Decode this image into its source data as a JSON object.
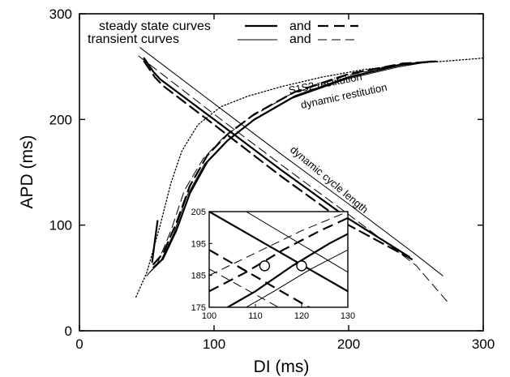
{
  "chart_data": {
    "type": "line",
    "title": "",
    "xlabel": "DI (ms)",
    "ylabel": "APD (ms)",
    "xlim": [
      0,
      300
    ],
    "ylim": [
      0,
      300
    ],
    "x_ticks": [
      "0",
      "100",
      "200",
      "300"
    ],
    "y_ticks": [
      "0",
      "100",
      "200",
      "300"
    ],
    "grid": false,
    "legend": {
      "placement": "top-left",
      "rows": [
        {
          "label": "steady state curves",
          "joiner": "and"
        },
        {
          "label": "transient curves",
          "joiner": "and"
        }
      ]
    },
    "annotations": [
      "S1S2 restitution",
      "dynamic restitution",
      "dynamic cycle length"
    ],
    "series": [
      {
        "style": "s1s2-dotted",
        "points": [
          [
            42,
            32
          ],
          [
            50,
            55
          ],
          [
            60,
            100
          ],
          [
            68,
            140
          ],
          [
            76,
            170
          ],
          [
            88,
            195
          ],
          [
            105,
            212
          ],
          [
            125,
            222
          ],
          [
            150,
            231
          ],
          [
            180,
            240
          ],
          [
            210,
            247
          ],
          [
            250,
            253
          ],
          [
            300,
            258
          ]
        ]
      },
      {
        "style": "steady-solid",
        "points": [
          [
            55,
            60
          ],
          [
            62,
            68
          ],
          [
            72,
            95
          ],
          [
            82,
            130
          ],
          [
            95,
            160
          ],
          [
            110,
            180
          ],
          [
            130,
            200
          ],
          [
            160,
            222
          ],
          [
            200,
            240
          ],
          [
            240,
            252
          ],
          [
            262,
            255
          ]
        ]
      },
      {
        "style": "steady-dashed",
        "points": [
          [
            55,
            63
          ],
          [
            62,
            73
          ],
          [
            72,
            102
          ],
          [
            82,
            137
          ],
          [
            95,
            166
          ],
          [
            110,
            186
          ],
          [
            130,
            205
          ],
          [
            160,
            226
          ],
          [
            200,
            243
          ],
          [
            240,
            253
          ],
          [
            265,
            255
          ]
        ]
      },
      {
        "style": "transient-solid",
        "points": [
          [
            52,
            55
          ],
          [
            60,
            65
          ],
          [
            70,
            92
          ],
          [
            80,
            128
          ],
          [
            93,
            158
          ],
          [
            108,
            178
          ],
          [
            128,
            198
          ],
          [
            158,
            220
          ],
          [
            198,
            238
          ],
          [
            238,
            250
          ],
          [
            262,
            255
          ]
        ]
      },
      {
        "style": "transient-dashed",
        "points": [
          [
            50,
            52
          ],
          [
            58,
            64
          ],
          [
            68,
            95
          ],
          [
            78,
            133
          ],
          [
            92,
            163
          ],
          [
            107,
            183
          ],
          [
            127,
            202
          ],
          [
            157,
            224
          ],
          [
            197,
            241
          ],
          [
            237,
            252
          ],
          [
            266,
            255
          ]
        ]
      },
      {
        "style": "steady-solid",
        "points": [
          [
            48,
            258
          ],
          [
            55,
            245
          ],
          [
            60,
            238
          ],
          [
            100,
            200
          ],
          [
            150,
            152
          ],
          [
            200,
            106
          ],
          [
            245,
            70
          ]
        ]
      },
      {
        "style": "steady-dashed",
        "points": [
          [
            48,
            255
          ],
          [
            56,
            240
          ],
          [
            62,
            232
          ],
          [
            100,
            195
          ],
          [
            150,
            146
          ],
          [
            200,
            100
          ],
          [
            248,
            67
          ]
        ]
      },
      {
        "style": "transient-solid",
        "points": [
          [
            45,
            268
          ],
          [
            100,
            215
          ],
          [
            150,
            167
          ],
          [
            200,
            120
          ],
          [
            250,
            72
          ],
          [
            270,
            52
          ]
        ]
      },
      {
        "style": "transient-dashed",
        "points": [
          [
            44,
            260
          ],
          [
            100,
            205
          ],
          [
            150,
            157
          ],
          [
            200,
            110
          ],
          [
            250,
            62
          ],
          [
            275,
            25
          ]
        ]
      },
      {
        "style": "steady-solid",
        "points": [
          [
            58,
            104
          ],
          [
            56,
            85
          ],
          [
            54,
            65
          ]
        ]
      }
    ],
    "inset": {
      "xlim": [
        100,
        130
      ],
      "ylim": [
        175,
        205
      ],
      "x_ticks": [
        "100",
        "110",
        "120",
        "130"
      ],
      "y_ticks": [
        "175",
        "185",
        "195",
        "205"
      ],
      "markers": [
        [
          112,
          188
        ],
        [
          120,
          188
        ]
      ],
      "series": [
        {
          "style": "steady-solid",
          "points": [
            [
              100,
              205
            ],
            [
              130,
              180
            ]
          ]
        },
        {
          "style": "steady-dashed",
          "points": [
            [
              100,
              193
            ],
            [
              130,
              168
            ]
          ]
        },
        {
          "style": "transient-solid",
          "points": [
            [
              108,
              205
            ],
            [
              130,
              186
            ]
          ]
        },
        {
          "style": "transient-dashed",
          "points": [
            [
              100,
              187
            ],
            [
              115,
              175
            ]
          ]
        },
        {
          "style": "steady-solid",
          "points": [
            [
              104,
              175
            ],
            [
              110,
              180
            ],
            [
              118,
              188
            ],
            [
              126,
              195
            ],
            [
              130,
              198
            ]
          ]
        },
        {
          "style": "steady-dashed",
          "points": [
            [
              100,
              180
            ],
            [
              108,
              186
            ],
            [
              116,
              193
            ],
            [
              124,
              199
            ],
            [
              130,
              203
            ]
          ]
        },
        {
          "style": "transient-solid",
          "points": [
            [
              108,
              175
            ],
            [
              114,
              180
            ],
            [
              122,
              187
            ],
            [
              130,
              193
            ]
          ]
        },
        {
          "style": "transient-dashed",
          "points": [
            [
              100,
              185
            ],
            [
              110,
              192
            ],
            [
              120,
              199
            ],
            [
              130,
              205
            ]
          ]
        }
      ]
    }
  }
}
